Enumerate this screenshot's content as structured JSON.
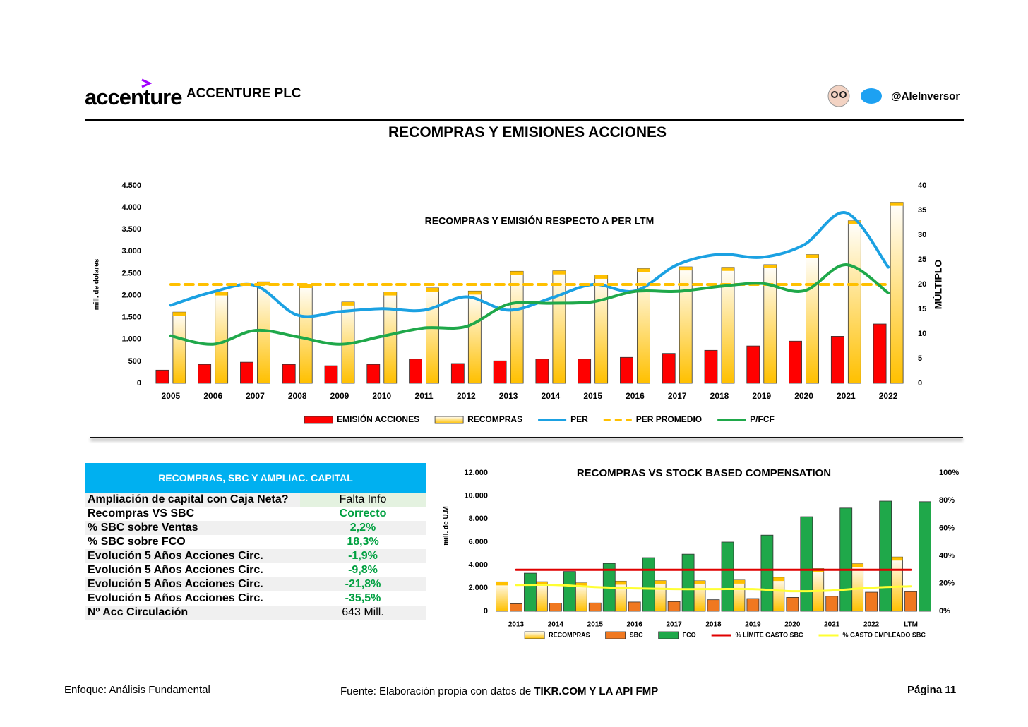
{
  "header": {
    "logo": "accenture",
    "company": "ACCENTURE PLC",
    "handle": "@AleInversor",
    "title": "RECOMPRAS Y EMISIONES ACCIONES"
  },
  "chart_data": [
    {
      "type": "combo",
      "title": "RECOMPRAS  Y EMISIÓN RESPECTO A PER LTM",
      "ylabel": "mill. de dolares",
      "y2label": "MÚLTIPLO",
      "categories": [
        "2005",
        "2006",
        "2007",
        "2008",
        "2009",
        "2010",
        "2011",
        "2012",
        "2013",
        "2014",
        "2015",
        "2016",
        "2017",
        "2018",
        "2019",
        "2020",
        "2021",
        "2022"
      ],
      "series": [
        {
          "name": "EMISIÓN ACCIONES",
          "kind": "bar",
          "color": "#ff0000",
          "values": [
            300,
            430,
            480,
            430,
            400,
            430,
            550,
            450,
            510,
            550,
            550,
            590,
            680,
            750,
            850,
            960,
            1070,
            1350
          ]
        },
        {
          "name": "RECOMPRAS",
          "kind": "bar",
          "color": "#ffc000",
          "gradient": true,
          "values": [
            1620,
            2080,
            2310,
            2250,
            1850,
            2080,
            2170,
            2100,
            2550,
            2560,
            2460,
            2610,
            2650,
            2640,
            2700,
            2930,
            3700,
            4120
          ]
        },
        {
          "name": "PER",
          "kind": "line",
          "axis": "y2",
          "color": "#1ba1e2",
          "values": [
            15.8,
            18.5,
            19.8,
            13.8,
            14.5,
            15.1,
            14.8,
            17.5,
            14.8,
            17.2,
            20,
            18.7,
            24,
            26.1,
            25.5,
            28,
            34.5,
            23.5
          ]
        },
        {
          "name": "PER PROMEDIO",
          "kind": "line",
          "axis": "y2",
          "dash": true,
          "color": "#ffc000",
          "values": [
            20,
            20,
            20,
            20,
            20,
            20,
            20,
            20,
            20,
            20,
            20,
            20,
            20,
            20,
            20,
            20,
            20,
            20
          ]
        },
        {
          "name": "P/FCF",
          "kind": "line",
          "axis": "y2",
          "color": "#1fa84a",
          "values": [
            9.6,
            7.9,
            10.7,
            9.4,
            7.9,
            9.5,
            11.2,
            11.5,
            16,
            16.2,
            16.5,
            18.6,
            18.6,
            19.6,
            20.2,
            18.7,
            24,
            18.3
          ]
        }
      ],
      "ylim": [
        0,
        4500
      ],
      "yticks": [
        0,
        500,
        {
          "value": 1000,
          "label": "1.000"
        },
        {
          "value": 1500,
          "label": "1.500"
        },
        {
          "value": 2000,
          "label": "2.000"
        },
        {
          "value": 2500,
          "label": "2.500"
        },
        {
          "value": 3000,
          "label": "3.000"
        },
        {
          "value": 3500,
          "label": "3.500"
        },
        {
          "value": 4000,
          "label": "4.000"
        },
        {
          "value": 4500,
          "label": "4.500"
        }
      ],
      "y2lim": [
        0,
        40
      ],
      "y2ticks": [
        0,
        5,
        10,
        15,
        20,
        25,
        30,
        35,
        40
      ],
      "grid": false
    },
    {
      "type": "combo",
      "title": "RECOMPRAS VS STOCK BASED COMPENSATION",
      "ylabel": "mill. de U.M",
      "categories": [
        "2013",
        "2014",
        "2015",
        "2016",
        "2017",
        "2018",
        "2019",
        "2020",
        "2021",
        "2022",
        "LTM"
      ],
      "series": [
        {
          "name": "RECOMPRAS",
          "kind": "bar",
          "color": "#ffc000",
          "gradient": true,
          "values": [
            2550,
            2560,
            2460,
            2610,
            2650,
            2640,
            2700,
            2930,
            3700,
            4120,
            4700
          ]
        },
        {
          "name": "SBC",
          "kind": "bar",
          "color": "#f07820",
          "values": [
            650,
            700,
            720,
            800,
            840,
            1000,
            1100,
            1200,
            1300,
            1650,
            1700
          ]
        },
        {
          "name": "FCO",
          "kind": "bar",
          "color": "#1fa84a",
          "values": [
            3300,
            3450,
            4150,
            4650,
            4950,
            6000,
            6600,
            8200,
            8950,
            9550,
            9500
          ]
        },
        {
          "name": "% LÍMITE GASTO SBC",
          "kind": "line",
          "axis": "y2",
          "color": "#e00000",
          "values": [
            30,
            30,
            30,
            30,
            30,
            30,
            30,
            30,
            30,
            30,
            30
          ]
        },
        {
          "name": "% GASTO EMPLEADO SBC",
          "kind": "line",
          "axis": "y2",
          "color": "#ffff33",
          "values": [
            19,
            19,
            17.5,
            16.5,
            16,
            16,
            16,
            14.5,
            15,
            17,
            18
          ]
        }
      ],
      "ylim": [
        0,
        12000
      ],
      "yticks": [
        0,
        {
          "value": 2000,
          "label": "2.000"
        },
        {
          "value": 4000,
          "label": "4.000"
        },
        {
          "value": 6000,
          "label": "6.000"
        },
        {
          "value": 8000,
          "label": "8.000"
        },
        {
          "value": 10000,
          "label": "10.000"
        },
        {
          "value": 12000,
          "label": "12.000"
        }
      ],
      "y2lim": [
        0,
        100
      ],
      "y2ticks": [
        {
          "value": 0,
          "label": "0%"
        },
        {
          "value": 20,
          "label": "20%"
        },
        {
          "value": 40,
          "label": "40%"
        },
        {
          "value": 60,
          "label": "60%"
        },
        {
          "value": 80,
          "label": "80%"
        },
        {
          "value": 100,
          "label": "100%"
        }
      ],
      "grid": false
    }
  ],
  "table": {
    "title": "RECOMPRAS, SBC Y AMPLIAC. CAPITAL",
    "rows": [
      [
        "Ampliación de capital con Caja Neta?",
        "Falta Info"
      ],
      [
        "Recompras VS SBC",
        "Correcto"
      ],
      [
        "% SBC sobre Ventas",
        "2,2%"
      ],
      [
        "% SBC sobre FCO",
        "18,3%"
      ],
      [
        "Evolución  5 Años Acciones Circ.",
        "-1,9%"
      ],
      [
        "Evolución  5 Años Acciones Circ.",
        "-9,8%"
      ],
      [
        "Evolución  5 Años Acciones Circ.",
        "-21,8%"
      ],
      [
        "Evolución  5 Años Acciones Circ.",
        "-35,5%"
      ],
      [
        "Nº Acc Circulación",
        "643 Mill."
      ]
    ]
  },
  "footer": {
    "left": "Enfoque: Análisis Fundamental",
    "source": "Fuente: Elaboración propia con datos de",
    "source_bold": "TIKR.COM Y LA API FMP",
    "page": "Página 11"
  }
}
